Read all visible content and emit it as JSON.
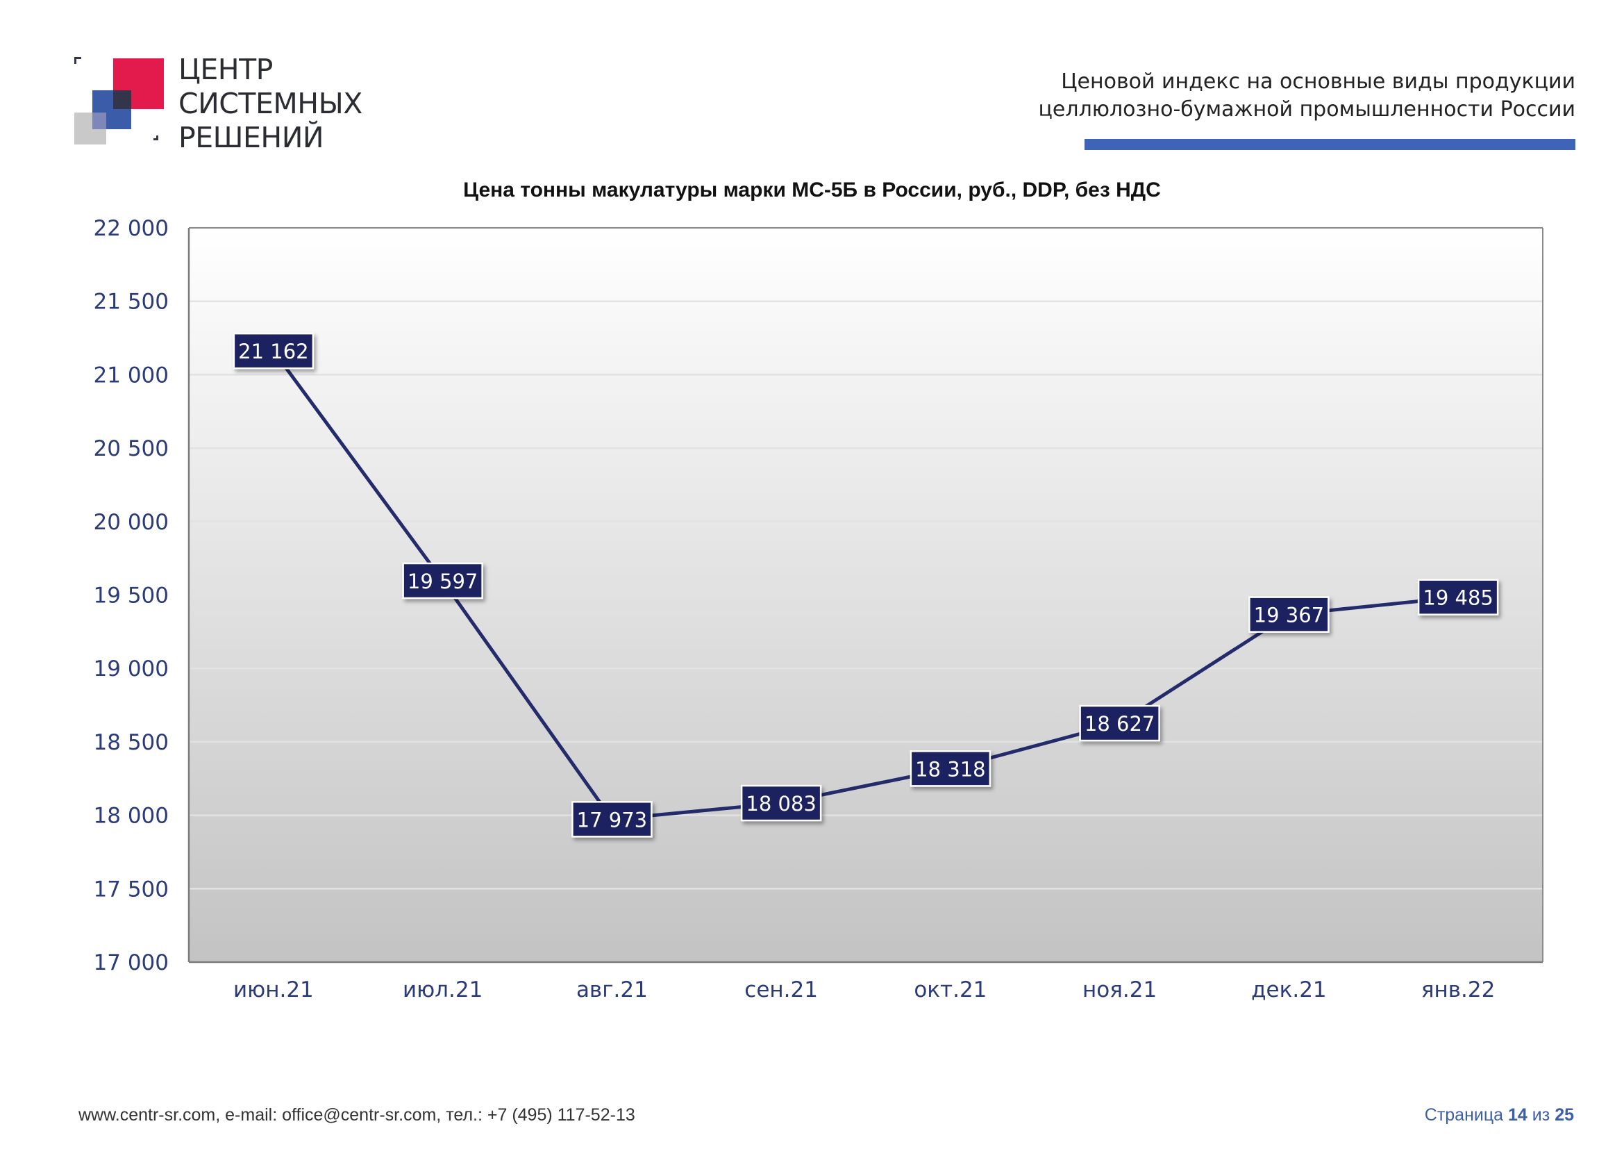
{
  "logo": {
    "line1": "ЦЕНТР",
    "line2": "СИСТЕМНЫХ",
    "line3": "РЕШЕНИЙ",
    "colors": {
      "red": "#e31b4c",
      "blue": "#3b5ca8",
      "dark": "#33354a",
      "gray": "#c9c9c9"
    }
  },
  "header": {
    "title_line1": "Ценовой индекс на основные виды продукции",
    "title_line2": "целлюлозно-бумажной промышленности России",
    "accent": "#3f63b7"
  },
  "chart_data": {
    "type": "line",
    "title": "Цена тонны макулатуры марки МС-5Б в России, руб., DDP, без НДС",
    "xlabel": "",
    "ylabel": "",
    "categories": [
      "июн.21",
      "июл.21",
      "авг.21",
      "сен.21",
      "окт.21",
      "ноя.21",
      "дек.21",
      "янв.22"
    ],
    "series": [
      {
        "values": [
          21162,
          19597,
          17973,
          18083,
          18318,
          18627,
          19367,
          19485
        ],
        "data_labels": [
          "21 162",
          "19 597",
          "17 973",
          "18 083",
          "18 318",
          "18 627",
          "19 367",
          "19 485"
        ],
        "color": "#232b6a"
      }
    ],
    "ylim": [
      17000,
      22000
    ],
    "y_ticks": [
      17000,
      17500,
      18000,
      18500,
      19000,
      19500,
      20000,
      20500,
      21000,
      21500,
      22000
    ],
    "y_tick_labels": [
      "17 000",
      "17 500",
      "18 000",
      "18 500",
      "19 000",
      "19 500",
      "20 000",
      "20 500",
      "21 000",
      "21 500",
      "22 000"
    ],
    "grid": true,
    "legend": "none",
    "label_box_color": "#1e2360",
    "tick_label_color": "#2b3a78"
  },
  "footer": {
    "contacts": "www.centr-sr.com, e-mail: office@centr-sr.com, тел.: +7 (495) 117-52-13",
    "page_prefix": "Страница",
    "page_current": "14",
    "page_sep": "из",
    "page_total": "25"
  }
}
